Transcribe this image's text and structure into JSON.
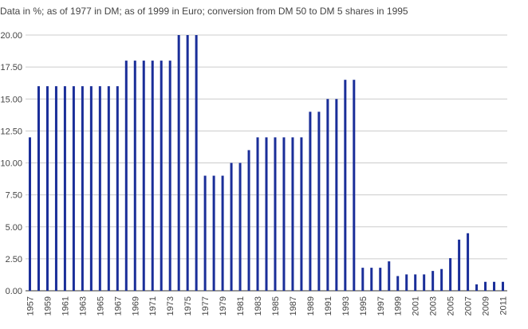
{
  "chart_data": {
    "type": "bar",
    "subtitle": "Data in %; as of 1977 in DM; as of 1999 in Euro; conversion from DM 50 to DM 5 shares in 1995",
    "title": "",
    "xlabel": "",
    "ylabel": "",
    "ylim": [
      0,
      20
    ],
    "yticks": [
      "0.00",
      "2.50",
      "5.00",
      "7.50",
      "10.00",
      "12.50",
      "15.00",
      "17.50",
      "20.00"
    ],
    "grid": true,
    "legend": "none",
    "bar_color": "#1a2e99",
    "categories": [
      1957,
      1958,
      1959,
      1960,
      1961,
      1962,
      1963,
      1964,
      1965,
      1966,
      1967,
      1968,
      1969,
      1970,
      1971,
      1972,
      1973,
      1974,
      1975,
      1976,
      1977,
      1978,
      1979,
      1980,
      1981,
      1982,
      1983,
      1984,
      1985,
      1986,
      1987,
      1988,
      1989,
      1990,
      1991,
      1992,
      1993,
      1994,
      1995,
      1996,
      1997,
      1998,
      1999,
      2000,
      2001,
      2002,
      2003,
      2004,
      2005,
      2006,
      2007,
      2008,
      2009,
      2010,
      2011
    ],
    "xtick_labels": [
      "1957",
      "1959",
      "1961",
      "1963",
      "1965",
      "1967",
      "1969",
      "1971",
      "1973",
      "1975",
      "1977",
      "1979",
      "1981",
      "1983",
      "1985",
      "1987",
      "1989",
      "1991",
      "1993",
      "1995",
      "1997",
      "1999",
      "2001",
      "2003",
      "2005",
      "2007",
      "2009",
      "2011"
    ],
    "values": [
      12,
      16,
      16,
      16,
      16,
      16,
      16,
      16,
      16,
      16,
      16,
      18,
      18,
      18,
      18,
      18,
      18,
      20,
      20,
      20,
      9,
      9,
      9,
      10,
      10,
      11,
      12,
      12,
      12,
      12,
      12,
      12,
      14,
      14,
      15,
      15,
      16.5,
      16.5,
      1.8,
      1.8,
      1.8,
      2.3,
      1.15,
      1.28,
      1.28,
      1.28,
      1.55,
      1.7,
      2.55,
      4,
      4.5,
      0.5,
      0.7,
      0.7,
      0.7
    ]
  }
}
